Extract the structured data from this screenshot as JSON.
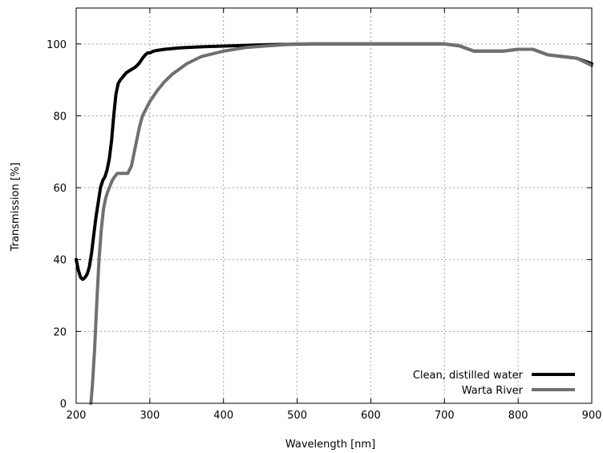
{
  "chart_data": {
    "type": "line",
    "title": "",
    "xlabel": "Wavelength [nm]",
    "ylabel": "Transmission [%]",
    "xlim": [
      200,
      900
    ],
    "ylim": [
      0,
      110
    ],
    "xticks": [
      200,
      300,
      400,
      500,
      600,
      700,
      800,
      900
    ],
    "yticks": [
      0,
      20,
      40,
      60,
      80,
      100
    ],
    "grid": true,
    "legend_position": "bottom-right",
    "series": [
      {
        "name": "Clean, distilled water",
        "color": "#000000",
        "x": [
          200,
          203,
          206,
          209,
          212,
          215,
          218,
          221,
          224,
          227,
          230,
          233,
          236,
          239,
          242,
          245,
          248,
          251,
          254,
          257,
          260,
          264,
          268,
          272,
          276,
          280,
          285,
          290,
          294,
          297,
          300,
          305,
          310,
          320,
          330,
          340,
          350,
          370,
          400,
          430,
          460,
          490,
          520,
          550,
          600,
          650,
          700,
          720,
          740,
          760,
          780,
          800,
          820,
          840,
          860,
          880,
          900
        ],
        "y": [
          40,
          37,
          35,
          34.5,
          35,
          36,
          38,
          42,
          47,
          52,
          56,
          60,
          62,
          63,
          65,
          68,
          73,
          80,
          86,
          89,
          90,
          91,
          92,
          92.5,
          93,
          93.5,
          94.5,
          96,
          97,
          97.5,
          97.5,
          98,
          98.2,
          98.5,
          98.7,
          98.9,
          99,
          99.2,
          99.4,
          99.6,
          99.8,
          99.9,
          100,
          100,
          100,
          100,
          100,
          99.5,
          98,
          98,
          98,
          98.5,
          98.5,
          97,
          96.5,
          96,
          94.5
        ]
      },
      {
        "name": "Warta River",
        "color": "#707070",
        "x": [
          220,
          222,
          225,
          228,
          231,
          234,
          237,
          240,
          243,
          246,
          249,
          252,
          256,
          260,
          265,
          270,
          275,
          278,
          282,
          286,
          290,
          300,
          310,
          320,
          330,
          340,
          350,
          370,
          400,
          430,
          460,
          500,
          550,
          600,
          650,
          700,
          720,
          740,
          760,
          780,
          800,
          820,
          840,
          860,
          880,
          900
        ],
        "y": [
          0,
          5,
          15,
          28,
          40,
          48,
          54,
          57,
          59,
          60.5,
          62,
          63,
          64,
          64,
          64,
          64,
          66,
          69,
          73,
          77,
          80,
          84,
          87,
          89.5,
          91.5,
          93,
          94.5,
          96.5,
          98,
          99,
          99.5,
          100,
          100,
          100,
          100,
          100,
          99.5,
          98,
          98,
          98,
          98.5,
          98.5,
          97,
          96.5,
          96,
          94
        ]
      }
    ]
  }
}
